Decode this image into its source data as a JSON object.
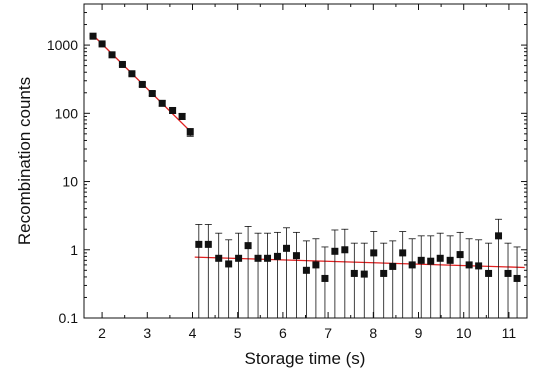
{
  "chart_data": {
    "type": "scatter",
    "xlabel": "Storage time (s)",
    "ylabel": "Recombination counts",
    "xlim": [
      1.6,
      11.4
    ],
    "ylim": [
      0.1,
      4000
    ],
    "yscale": "log",
    "x_ticks": [
      2,
      3,
      4,
      5,
      6,
      7,
      8,
      9,
      10,
      11
    ],
    "y_ticks": [
      0.1,
      1,
      10,
      100,
      1000
    ],
    "y_tick_labels": [
      "0.1",
      "1",
      "10",
      "100",
      "1000"
    ],
    "grid": false,
    "colors": {
      "points": "#111111",
      "fit": "#e02020",
      "axes": "#111111"
    },
    "series": [
      {
        "marker": "square",
        "points": [
          {
            "x": 1.8,
            "y": 1350,
            "err_low": 1310,
            "err_high": 1390
          },
          {
            "x": 2.0,
            "y": 1040,
            "err_low": 1005,
            "err_high": 1075
          },
          {
            "x": 2.22,
            "y": 720,
            "err_low": 693,
            "err_high": 747
          },
          {
            "x": 2.45,
            "y": 520,
            "err_low": 497,
            "err_high": 543
          },
          {
            "x": 2.66,
            "y": 380,
            "err_low": 361,
            "err_high": 400
          },
          {
            "x": 2.89,
            "y": 265,
            "err_low": 249,
            "err_high": 281
          },
          {
            "x": 3.11,
            "y": 195,
            "err_low": 181,
            "err_high": 209
          },
          {
            "x": 3.33,
            "y": 140,
            "err_low": 128,
            "err_high": 152
          },
          {
            "x": 3.56,
            "y": 110,
            "err_low": 100,
            "err_high": 120
          },
          {
            "x": 3.77,
            "y": 90,
            "err_low": 81,
            "err_high": 99
          },
          {
            "x": 3.95,
            "y": 53,
            "err_low": 46,
            "err_high": 60
          },
          {
            "x": 4.14,
            "y": 1.2,
            "err_low": 0.1,
            "err_high": 2.35
          },
          {
            "x": 4.35,
            "y": 1.2,
            "err_low": 0.1,
            "err_high": 2.35
          },
          {
            "x": 4.58,
            "y": 0.75,
            "err_low": 0.1,
            "err_high": 1.75
          },
          {
            "x": 4.8,
            "y": 0.62,
            "err_low": 0.1,
            "err_high": 1.4
          },
          {
            "x": 5.02,
            "y": 0.75,
            "err_low": 0.1,
            "err_high": 1.75
          },
          {
            "x": 5.23,
            "y": 1.15,
            "err_low": 0.1,
            "err_high": 2.2
          },
          {
            "x": 5.45,
            "y": 0.75,
            "err_low": 0.1,
            "err_high": 1.75
          },
          {
            "x": 5.66,
            "y": 0.75,
            "err_low": 0.1,
            "err_high": 1.75
          },
          {
            "x": 5.88,
            "y": 0.8,
            "err_low": 0.1,
            "err_high": 1.8
          },
          {
            "x": 6.08,
            "y": 1.05,
            "err_low": 0.1,
            "err_high": 2.1
          },
          {
            "x": 6.3,
            "y": 0.82,
            "err_low": 0.1,
            "err_high": 1.8
          },
          {
            "x": 6.52,
            "y": 0.5,
            "err_low": 0.1,
            "err_high": 1.35
          },
          {
            "x": 6.73,
            "y": 0.6,
            "err_low": 0.1,
            "err_high": 1.45
          },
          {
            "x": 6.93,
            "y": 0.38,
            "err_low": 0.1,
            "err_high": 1.1
          },
          {
            "x": 7.15,
            "y": 0.95,
            "err_low": 0.1,
            "err_high": 1.95
          },
          {
            "x": 7.37,
            "y": 1.0,
            "err_low": 0.1,
            "err_high": 2.0
          },
          {
            "x": 7.58,
            "y": 0.45,
            "err_low": 0.1,
            "err_high": 1.25
          },
          {
            "x": 7.8,
            "y": 0.44,
            "err_low": 0.1,
            "err_high": 1.25
          },
          {
            "x": 8.01,
            "y": 0.9,
            "err_low": 0.1,
            "err_high": 1.85
          },
          {
            "x": 8.23,
            "y": 0.45,
            "err_low": 0.1,
            "err_high": 1.25
          },
          {
            "x": 8.43,
            "y": 0.57,
            "err_low": 0.1,
            "err_high": 1.35
          },
          {
            "x": 8.65,
            "y": 0.9,
            "err_low": 0.1,
            "err_high": 1.85
          },
          {
            "x": 8.86,
            "y": 0.6,
            "err_low": 0.1,
            "err_high": 1.45
          },
          {
            "x": 9.06,
            "y": 0.7,
            "err_low": 0.1,
            "err_high": 1.6
          },
          {
            "x": 9.27,
            "y": 0.68,
            "err_low": 0.1,
            "err_high": 1.6
          },
          {
            "x": 9.48,
            "y": 0.75,
            "err_low": 0.1,
            "err_high": 1.75
          },
          {
            "x": 9.7,
            "y": 0.7,
            "err_low": 0.1,
            "err_high": 1.6
          },
          {
            "x": 9.92,
            "y": 0.85,
            "err_low": 0.1,
            "err_high": 1.8
          },
          {
            "x": 10.12,
            "y": 0.6,
            "err_low": 0.1,
            "err_high": 1.45
          },
          {
            "x": 10.33,
            "y": 0.58,
            "err_low": 0.1,
            "err_high": 1.4
          },
          {
            "x": 10.55,
            "y": 0.45,
            "err_low": 0.1,
            "err_high": 1.25
          },
          {
            "x": 10.77,
            "y": 1.6,
            "err_low": 0.1,
            "err_high": 2.8
          },
          {
            "x": 10.98,
            "y": 0.45,
            "err_low": 0.1,
            "err_high": 1.25
          },
          {
            "x": 11.18,
            "y": 0.38,
            "err_low": 0.1,
            "err_high": 1.1
          }
        ]
      }
    ],
    "fit_lines": [
      {
        "x": [
          1.8,
          3.97
        ],
        "y": [
          1400,
          53
        ]
      },
      {
        "x": [
          4.05,
          11.35
        ],
        "y": [
          0.78,
          0.55
        ]
      }
    ]
  }
}
